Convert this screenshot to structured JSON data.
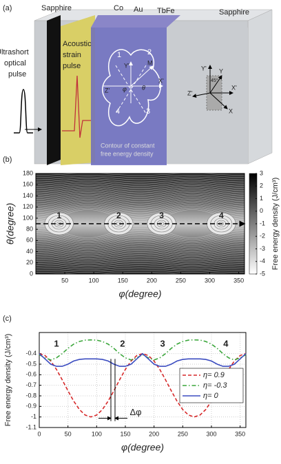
{
  "diagram": {
    "panel_label": "(a)",
    "layers": [
      "Sapphire",
      "Co",
      "Au",
      "TbFe",
      "Sapphire"
    ],
    "pulse_label": [
      "Ultrashort",
      "optical",
      "pulse"
    ],
    "strain_label": [
      "Acoustic",
      "strain",
      "pulse"
    ],
    "domains": [
      "1",
      "2",
      "3",
      "4"
    ],
    "local_axes": [
      "Y'",
      "M",
      "Z'",
      "φ",
      "θ",
      "X'"
    ],
    "global_axes": [
      "Y'",
      "Y",
      "45°",
      "Z'",
      "X'",
      "X"
    ],
    "contour_label": [
      "Contour of constant",
      "free energy density"
    ]
  },
  "chart_data": [
    {
      "type": "contour",
      "panel_label": "(b)",
      "xlabel": "φ(degree)",
      "ylabel": "θ(degree)",
      "xlim": [
        0,
        360
      ],
      "xticks": [
        50,
        100,
        150,
        200,
        250,
        300,
        350
      ],
      "ylim": [
        0,
        180
      ],
      "yticks": [
        0,
        20,
        40,
        60,
        80,
        100,
        120,
        140,
        160,
        180
      ],
      "reference_line": 90,
      "colorbar_label": "Free energy density (J/cm³)",
      "clim": [
        -5,
        3
      ],
      "cticks": [
        -5,
        -4,
        -3,
        -2,
        -1,
        0,
        1,
        2,
        3
      ],
      "annotations": [
        {
          "text": "1",
          "x": 40,
          "y": 104
        },
        {
          "text": "2",
          "x": 143,
          "y": 104
        },
        {
          "text": "3",
          "x": 217,
          "y": 104
        },
        {
          "text": "4",
          "x": 320,
          "y": 104
        }
      ]
    },
    {
      "type": "line",
      "panel_label": "(c)",
      "xlabel": "φ(degree)",
      "ylabel": "Free energy density (J/cm³)",
      "xlim": [
        0,
        360
      ],
      "xticks": [
        0,
        50,
        100,
        150,
        200,
        250,
        300,
        350
      ],
      "ylim": [
        -1.1,
        -0.2
      ],
      "yticks": [
        -1.1,
        -1,
        -0.9,
        -0.8,
        -0.7,
        -0.6,
        -0.5,
        -0.4
      ],
      "grid": true,
      "legend": "right",
      "x": [
        0,
        10,
        20,
        30,
        40,
        50,
        60,
        70,
        80,
        90,
        100,
        110,
        120,
        130,
        140,
        150,
        160,
        170,
        180,
        190,
        200,
        210,
        220,
        230,
        240,
        250,
        260,
        270,
        280,
        290,
        300,
        310,
        320,
        330,
        340,
        350,
        360
      ],
      "series": [
        {
          "name": "η= 0.9",
          "color": "#d62728",
          "style": "dashed",
          "values": [
            -0.4,
            -0.418,
            -0.47,
            -0.55,
            -0.648,
            -0.752,
            -0.85,
            -0.93,
            -0.982,
            -1,
            -0.982,
            -0.93,
            -0.85,
            -0.752,
            -0.648,
            -0.55,
            -0.47,
            -0.418,
            -0.4,
            -0.418,
            -0.47,
            -0.55,
            -0.648,
            -0.752,
            -0.85,
            -0.93,
            -0.982,
            -1,
            -0.982,
            -0.93,
            -0.85,
            -0.752,
            -0.648,
            -0.55,
            -0.47,
            -0.418,
            -0.4
          ]
        },
        {
          "name": "η= -0.3",
          "color": "#3aa63a",
          "style": "dashdot",
          "values": [
            -0.41,
            -0.44,
            -0.46,
            -0.44,
            -0.4,
            -0.35,
            -0.31,
            -0.285,
            -0.272,
            -0.27,
            -0.272,
            -0.285,
            -0.31,
            -0.35,
            -0.4,
            -0.44,
            -0.46,
            -0.44,
            -0.41,
            -0.44,
            -0.46,
            -0.44,
            -0.4,
            -0.35,
            -0.31,
            -0.285,
            -0.272,
            -0.27,
            -0.272,
            -0.285,
            -0.31,
            -0.35,
            -0.4,
            -0.44,
            -0.46,
            -0.44,
            -0.41
          ]
        },
        {
          "name": "η= 0",
          "color": "#3b4cc0",
          "style": "solid",
          "values": [
            -0.4,
            -0.45,
            -0.5,
            -0.52,
            -0.52,
            -0.5,
            -0.47,
            -0.455,
            -0.45,
            -0.45,
            -0.45,
            -0.455,
            -0.47,
            -0.5,
            -0.52,
            -0.52,
            -0.5,
            -0.45,
            -0.4,
            -0.45,
            -0.5,
            -0.52,
            -0.52,
            -0.5,
            -0.47,
            -0.455,
            -0.45,
            -0.45,
            -0.45,
            -0.455,
            -0.47,
            -0.5,
            -0.52,
            -0.52,
            -0.5,
            -0.45,
            -0.4
          ]
        }
      ],
      "annotations": [
        {
          "text": "1",
          "x": 30,
          "y": -0.31
        },
        {
          "text": "2",
          "x": 145,
          "y": -0.31
        },
        {
          "text": "3",
          "x": 215,
          "y": -0.31
        },
        {
          "text": "4",
          "x": 325,
          "y": -0.31
        },
        {
          "text": "Δφ",
          "x": 168,
          "y": -0.96
        }
      ]
    }
  ]
}
